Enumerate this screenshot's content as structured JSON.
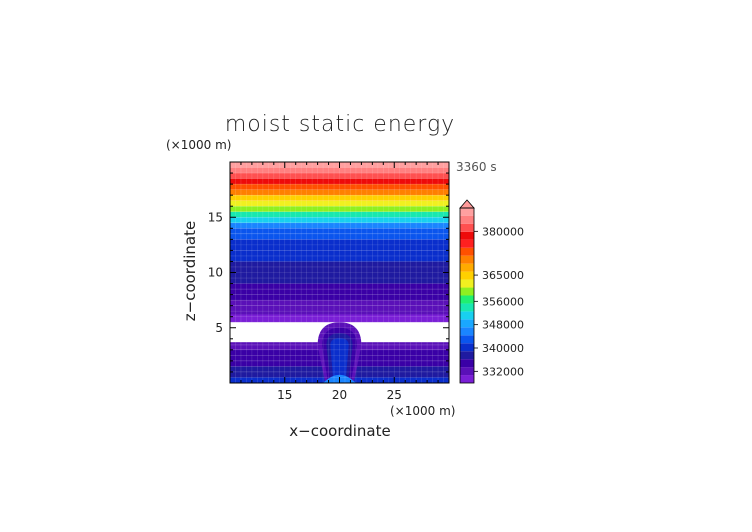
{
  "chart_data": {
    "type": "heatmap",
    "title": "moist static energy",
    "time_label": "3360 s",
    "xlabel": "x−coordinate",
    "ylabel": "z−coordinate",
    "x_unit": "(×1000 m)",
    "z_unit": "(×1000 m)",
    "xlim": [
      10,
      30
    ],
    "ylim": [
      0,
      20
    ],
    "x_ticks": [
      15,
      20,
      25
    ],
    "z_ticks": [
      5,
      10,
      15
    ],
    "colorbar": {
      "levels_min": 328000,
      "levels_max": 388000,
      "labels": [
        332000,
        340000,
        348000,
        356000,
        365000,
        380000
      ],
      "extend": "max",
      "colors": [
        "#7a1fd6",
        "#5a10b8",
        "#3a00a6",
        "#1f1aa0",
        "#0a2ecc",
        "#0a55ee",
        "#1a85ff",
        "#1aa8ff",
        "#18d0f0",
        "#18e8b0",
        "#20f070",
        "#8ef020",
        "#f0f020",
        "#ffd000",
        "#ffaa00",
        "#ff8000",
        "#ff5000",
        "#ff2020",
        "#ee0a0a",
        "#ff5050",
        "#ff8080",
        "#ffa0a0"
      ],
      "top_color": "#ff9a9a"
    },
    "background_bands": [
      {
        "z_bottom": 0.0,
        "value": 339000
      },
      {
        "z_bottom": 0.5,
        "value": 338000
      },
      {
        "z_bottom": 1.0,
        "value": 336500
      },
      {
        "z_bottom": 1.5,
        "value": 335500
      },
      {
        "z_bottom": 2.0,
        "value": 334000
      },
      {
        "z_bottom": 2.5,
        "value": 333500
      },
      {
        "z_bottom": 3.0,
        "value": 332500
      },
      {
        "z_bottom": 3.4,
        "value": 331000
      },
      {
        "z_bottom": 3.7,
        "value": null
      },
      {
        "z_bottom": 5.5,
        "value": 330500
      },
      {
        "z_bottom": 6.2,
        "value": 331500
      },
      {
        "z_bottom": 7.0,
        "value": 332500
      },
      {
        "z_bottom": 7.5,
        "value": 333500
      },
      {
        "z_bottom": 8.0,
        "value": 334500
      },
      {
        "z_bottom": 8.5,
        "value": 335500
      },
      {
        "z_bottom": 9.0,
        "value": 336500
      },
      {
        "z_bottom": 10.0,
        "value": 337500
      },
      {
        "z_bottom": 11.0,
        "value": 339000
      },
      {
        "z_bottom": 12.0,
        "value": 340500
      },
      {
        "z_bottom": 13.0,
        "value": 342000
      },
      {
        "z_bottom": 13.5,
        "value": 344000
      },
      {
        "z_bottom": 14.0,
        "value": 347000
      },
      {
        "z_bottom": 14.5,
        "value": 350000
      },
      {
        "z_bottom": 15.0,
        "value": 354000
      },
      {
        "z_bottom": 15.5,
        "value": 358000
      },
      {
        "z_bottom": 16.0,
        "value": 362000
      },
      {
        "z_bottom": 16.5,
        "value": 366000
      },
      {
        "z_bottom": 17.0,
        "value": 370000
      },
      {
        "z_bottom": 17.5,
        "value": 374000
      },
      {
        "z_bottom": 18.0,
        "value": 378000
      },
      {
        "z_bottom": 18.5,
        "value": 382000
      },
      {
        "z_bottom": 19.0,
        "value": 385000
      },
      {
        "z_bottom": 19.5,
        "value": 387000
      }
    ],
    "plume": {
      "center_x": 20,
      "top_z": 5.5,
      "dome_halfwidth": 2.0,
      "base_halfwidth": 1.3,
      "shells": [
        {
          "value": 331000,
          "scale": 1.0
        },
        {
          "value": 334000,
          "scale": 0.8
        },
        {
          "value": 337500,
          "scale": 0.6
        },
        {
          "value": 341000,
          "scale": 0.42
        }
      ],
      "core": {
        "value": 346000,
        "top_z": 1.5,
        "halfwidth": 1.5
      }
    }
  }
}
